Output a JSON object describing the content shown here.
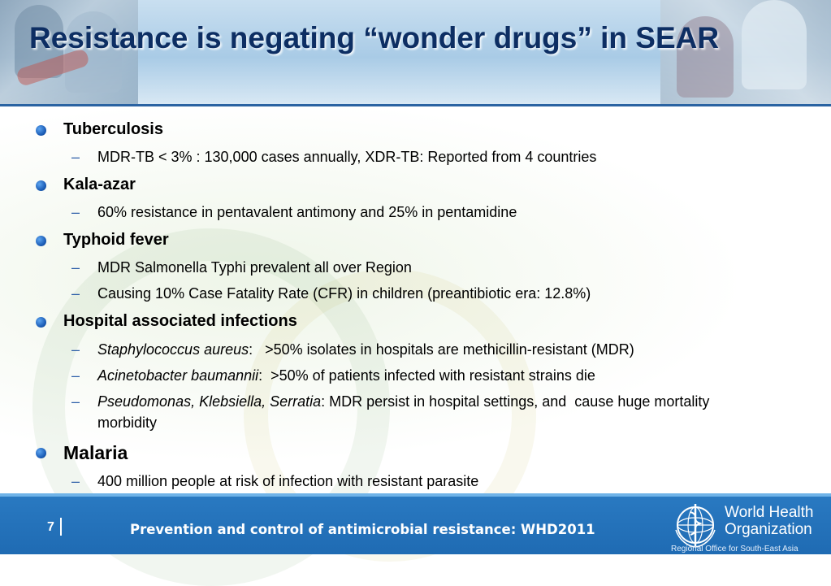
{
  "slide": {
    "title": "Resistance is negating “wonder drugs” in SEAR"
  },
  "sections": [
    {
      "heading": "Tuberculosis",
      "items": [
        {
          "text": "MDR-TB < 3% : 130,000 cases annually, XDR-TB: Reported from 4 countries"
        }
      ]
    },
    {
      "heading": "Kala-azar",
      "items": [
        {
          "text": "60% resistance in pentavalent antimony and 25% in pentamidine"
        }
      ]
    },
    {
      "heading": "Typhoid fever",
      "items": [
        {
          "text": "MDR Salmonella Typhi prevalent all over Region"
        },
        {
          "text": "Causing 10% Case Fatality Rate (CFR) in children (preantibiotic era: 12.8%)"
        }
      ]
    },
    {
      "heading": "Hospital associated infections",
      "items": [
        {
          "organism": "Staphylococcus aureus",
          "text": ":   >50% isolates in hospitals are methicillin-resistant (MDR)"
        },
        {
          "organism": "Acinetobacter baumannii",
          "text": ":  >50% of patients infected with resistant strains die"
        },
        {
          "organism": "Pseudomonas, Klebsiella, Serratia",
          "text": ": MDR persist in hospital settings, and  cause huge mortality",
          "continuation": "morbidity"
        }
      ]
    },
    {
      "heading": "Malaria",
      "items": [
        {
          "text": "400 million people at risk of infection with resistant parasite"
        }
      ]
    }
  ],
  "footer": {
    "page_number": "7",
    "text": "Prevention and control of antimicrobial resistance: WHD2011",
    "org_line1": "World Health",
    "org_line2": "Organization",
    "org_region": "Regional Office for South-East Asia"
  },
  "colors": {
    "title": "#0d2e63",
    "bullet": "#1d5fb8",
    "footer_bg": "#1f6bb3"
  },
  "icons": {
    "bullet": "blue-sphere-bullet",
    "logo": "who-emblem-icon"
  }
}
